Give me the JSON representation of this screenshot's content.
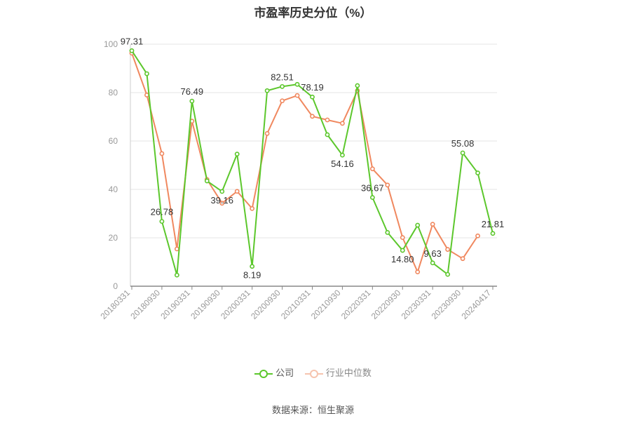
{
  "chart_data": {
    "type": "line",
    "title": "市盈率历史分位（%）",
    "source": "数据来源：恒生聚源",
    "ylim": [
      0,
      100
    ],
    "yticks": [
      0,
      20,
      40,
      60,
      80,
      100
    ],
    "x": [
      "20180331",
      "20180630",
      "20180930",
      "20181231",
      "20190331",
      "20190630",
      "20190930",
      "20191231",
      "20200331",
      "20200630",
      "20200930",
      "20201231",
      "20210331",
      "20210630",
      "20210930",
      "20211231",
      "20220331",
      "20220630",
      "20220930",
      "20221231",
      "20230331",
      "20230630",
      "20230930",
      "20231231",
      "20240417"
    ],
    "xtick_labels": [
      "20180331",
      "20180930",
      "20190331",
      "20190930",
      "20200331",
      "20200930",
      "20210331",
      "20210930",
      "20220331",
      "20220930",
      "20230331",
      "20230930",
      "20240417"
    ],
    "grid": true,
    "legend_position": "bottom",
    "series": [
      {
        "name": "公司",
        "color": "#5cc72c",
        "values": [
          97.31,
          87.8,
          26.78,
          4.6,
          76.49,
          43.5,
          39.16,
          54.6,
          8.19,
          80.8,
          82.51,
          83.4,
          78.19,
          62.6,
          54.16,
          82.9,
          36.67,
          22.2,
          14.8,
          25.2,
          9.63,
          4.9,
          55.08,
          46.8,
          21.81
        ]
      },
      {
        "name": "行业中位数",
        "color": "#f0885f",
        "values": [
          96.3,
          79.0,
          54.8,
          15.4,
          68.2,
          44.1,
          34.3,
          39.2,
          32.1,
          63.1,
          76.6,
          78.8,
          70.2,
          68.7,
          67.3,
          80.8,
          48.5,
          41.8,
          20.1,
          5.9,
          25.6,
          15.2,
          11.4,
          20.8,
          null
        ]
      }
    ],
    "annotations": [
      {
        "label": "97.31",
        "index": 0
      },
      {
        "label": "26.78",
        "index": 2
      },
      {
        "label": "76.49",
        "index": 4
      },
      {
        "label": "39.16",
        "index": 6
      },
      {
        "label": "8.19",
        "index": 8
      },
      {
        "label": "82.51",
        "index": 10
      },
      {
        "label": "78.19",
        "index": 12
      },
      {
        "label": "54.16",
        "index": 14
      },
      {
        "label": "36.67",
        "index": 16
      },
      {
        "label": "14.80",
        "index": 18
      },
      {
        "label": "9.63",
        "index": 20
      },
      {
        "label": "55.08",
        "index": 22
      },
      {
        "label": "21.81",
        "index": 24
      }
    ]
  }
}
